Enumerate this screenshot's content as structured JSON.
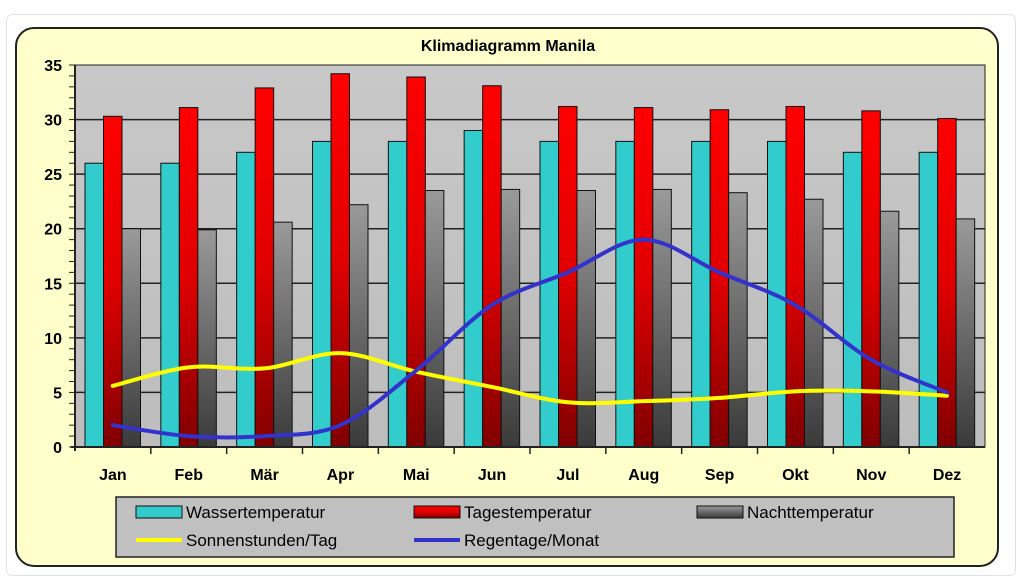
{
  "chart_data": {
    "type": "bar",
    "title": "Klimadiagramm Manila",
    "categories": [
      "Jan",
      "Feb",
      "Mär",
      "Apr",
      "Mai",
      "Jun",
      "Jul",
      "Aug",
      "Sep",
      "Okt",
      "Nov",
      "Dez"
    ],
    "ylim": [
      0,
      35
    ],
    "yticks": [
      "0",
      "5",
      "10",
      "15",
      "20",
      "25",
      "30",
      "35"
    ],
    "grid": true,
    "legend_position": "bottom",
    "series": [
      {
        "name": "Wassertemperatur",
        "kind": "bar",
        "color": "#33cccc",
        "values": [
          26,
          26,
          27,
          28,
          28,
          29,
          28,
          28,
          28,
          28,
          27,
          27
        ]
      },
      {
        "name": "Tagestemperatur",
        "kind": "bar",
        "color": "#ff0000",
        "values": [
          30.3,
          31.1,
          32.9,
          34.2,
          33.9,
          33.1,
          31.2,
          31.1,
          30.9,
          31.2,
          30.8,
          30.1
        ]
      },
      {
        "name": "Nachttemperatur",
        "kind": "bar",
        "color": "#808080",
        "values": [
          20,
          19.9,
          20.6,
          22.2,
          23.5,
          23.6,
          23.5,
          23.6,
          23.3,
          22.7,
          21.6,
          20.9
        ]
      },
      {
        "name": "Sonnenstunden/Tag",
        "kind": "line",
        "color": "#ffff00",
        "values": [
          5.6,
          7.3,
          7.2,
          8.6,
          6.9,
          5.5,
          4.1,
          4.2,
          4.5,
          5.1,
          5.1,
          4.7
        ]
      },
      {
        "name": "Regentage/Monat",
        "kind": "line",
        "color": "#3333cc",
        "values": [
          2,
          1,
          1,
          2,
          7,
          13,
          16,
          19,
          16,
          13,
          8,
          5
        ]
      }
    ]
  }
}
